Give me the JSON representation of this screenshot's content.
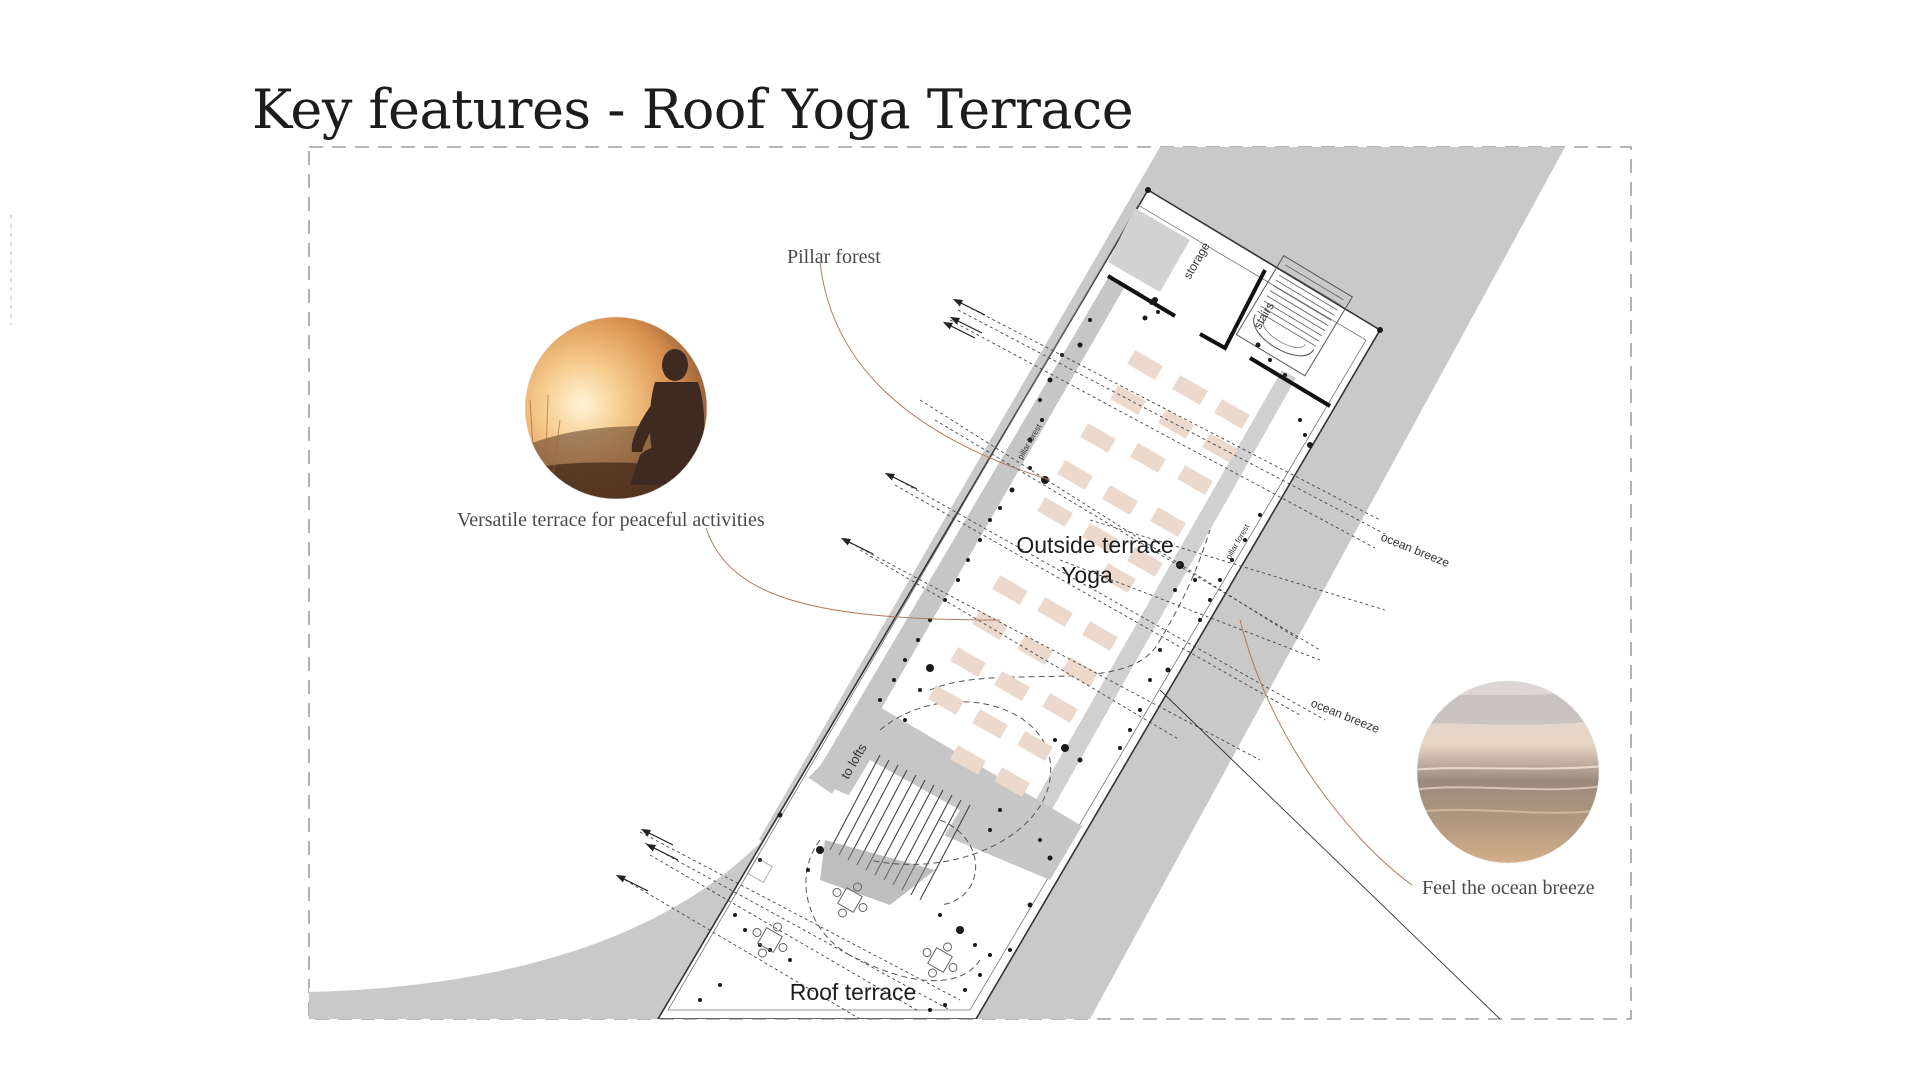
{
  "title": "Key features - Roof Yoga Terrace",
  "callouts": {
    "pillar_forest": "Pillar forest",
    "versatile": "Versatile terrace for peaceful activities",
    "ocean_breeze": "Feel the ocean breeze"
  },
  "plan": {
    "outside_terrace": "Outside terrace",
    "yoga": "Yoga",
    "roof_terrace": "Roof terrace",
    "storage": "storage",
    "stairs": "stairs",
    "to_lofts": "to lofts",
    "pillar_forest_small_1": "pillar forest",
    "pillar_forest_small_2": "pillar forest",
    "ocean_breeze_1": "ocean breeze",
    "ocean_breeze_2": "ocean breeze"
  },
  "colors": {
    "accent_line": "#b07a5e",
    "mat": "#ead9cc",
    "site_gray": "#c8c8c8"
  },
  "icons": {
    "meditation_photo": "meditating-person-sunset-photo",
    "ocean_photo": "ocean-beach-sunset-photo"
  }
}
